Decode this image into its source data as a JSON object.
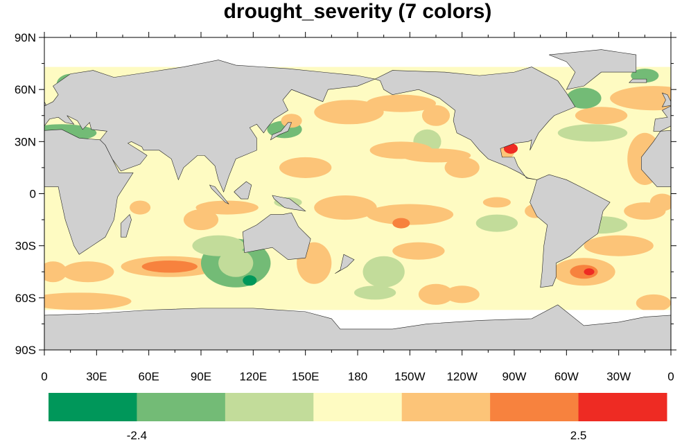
{
  "title": "drought_severity (7 colors)",
  "lat_labels": [
    "90N",
    "60N",
    "30N",
    "0",
    "30S",
    "60S",
    "90S"
  ],
  "lon_labels": [
    "0",
    "30E",
    "60E",
    "90E",
    "120E",
    "150E",
    "180",
    "150W",
    "120W",
    "90W",
    "60W",
    "30W",
    "0"
  ],
  "colorbar": {
    "colors": [
      "#00975a",
      "#73bb76",
      "#c2dc9a",
      "#fefbc2",
      "#fcc478",
      "#f7823e",
      "#ee2b23"
    ],
    "labels": [
      "-2.4",
      "2.5"
    ]
  },
  "colors": {
    "land": "#d0d0d0",
    "missing": "#ffffff"
  }
}
